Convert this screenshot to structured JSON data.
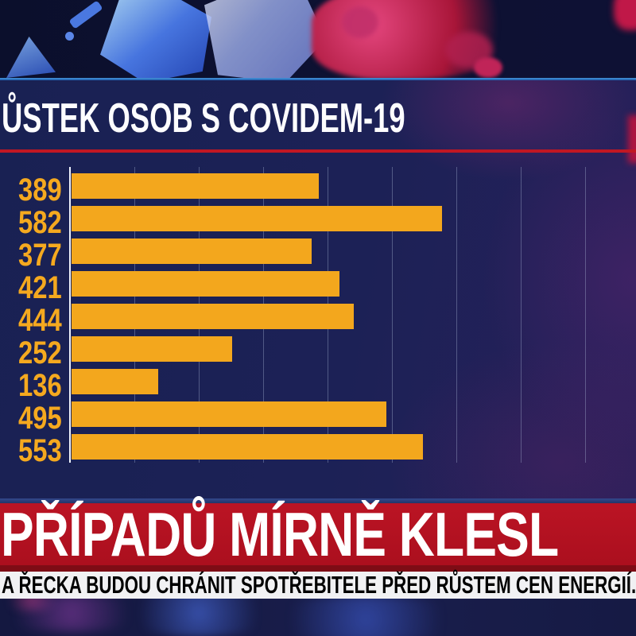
{
  "header": {
    "title": "ŮSTEK OSOB S COVIDEM-19"
  },
  "chart_data": {
    "type": "bar",
    "orientation": "horizontal",
    "title": "ŮSTEK OSOB S COVIDEM-19",
    "values": [
      389,
      582,
      377,
      421,
      444,
      252,
      136,
      495,
      553
    ],
    "value_labels_shown": true,
    "categories_shown": false,
    "xlim": [
      0,
      840
    ],
    "gridline_interval": 100,
    "grid": true,
    "legend": "none",
    "bar_color": "#f3a71d",
    "label_color": "#f5a91f"
  },
  "headline": {
    "text": "PŘÍPADŮ MÍRNĚ KLESL"
  },
  "ticker": {
    "text": "A ŘECKA BUDOU CHRÁNIT SPOTŘEBITELE PŘED RŮSTEM CEN ENERGIÍ."
  },
  "colors": {
    "bar": "#f3a71d",
    "accent_red_line": "#c11723",
    "headline_bg": "#ab0f1e",
    "headline_text": "#ffffff",
    "ticker_bg": "#f1f1f3",
    "ticker_text": "#1a2350",
    "panel_bg": "#1b2156",
    "title_text": "#fdfdff",
    "separator_blue": "#2e7ec8"
  }
}
